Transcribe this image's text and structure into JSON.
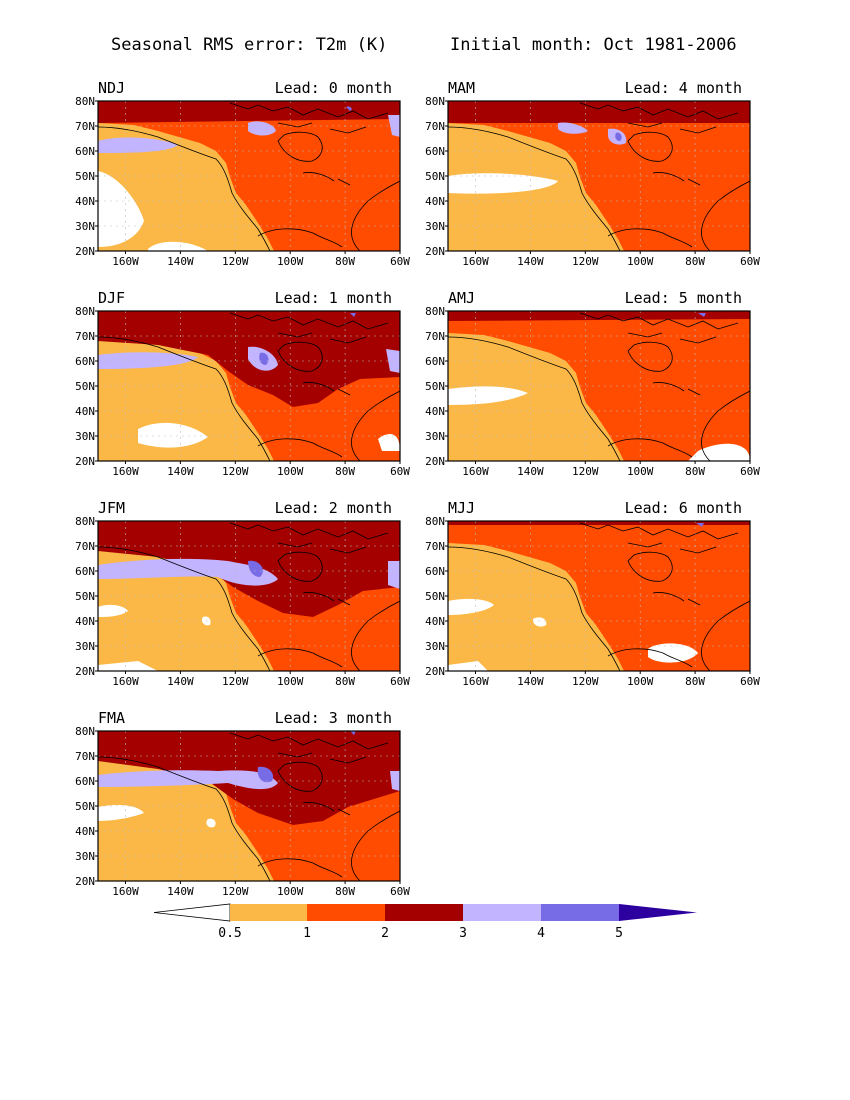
{
  "figure": {
    "title_left": "Seasonal RMS error: T2m (K)",
    "title_right": "Initial month: Oct 1981-2006"
  },
  "axes": {
    "lat_labels": [
      "20N",
      "30N",
      "40N",
      "50N",
      "60N",
      "70N",
      "80N"
    ],
    "lon_labels": [
      "160W",
      "140W",
      "120W",
      "100W",
      "80W",
      "60W"
    ],
    "lat_range": [
      20,
      80
    ],
    "lon_range": [
      -170,
      -60
    ]
  },
  "panels": [
    {
      "season": "NDJ",
      "lead": "Lead: 0 month",
      "level": 3
    },
    {
      "season": "MAM",
      "lead": "Lead: 4 month",
      "level": 3
    },
    {
      "season": "DJF",
      "lead": "Lead: 1 month",
      "level": 3
    },
    {
      "season": "AMJ",
      "lead": "Lead: 5 month",
      "level": 2
    },
    {
      "season": "JFM",
      "lead": "Lead: 2 month",
      "level": 3
    },
    {
      "season": "MJJ",
      "lead": "Lead: 6 month",
      "level": 2
    },
    {
      "season": "FMA",
      "lead": "Lead: 3 month",
      "level": 3
    }
  ],
  "colorbar": {
    "tick_labels": [
      "0.5",
      "1",
      "2",
      "3",
      "4",
      "5"
    ],
    "colors": [
      "#ffffff",
      "#fbb846",
      "#ff4c00",
      "#a50000",
      "#c2b4ff",
      "#786be6",
      "#2d00a0"
    ]
  }
}
